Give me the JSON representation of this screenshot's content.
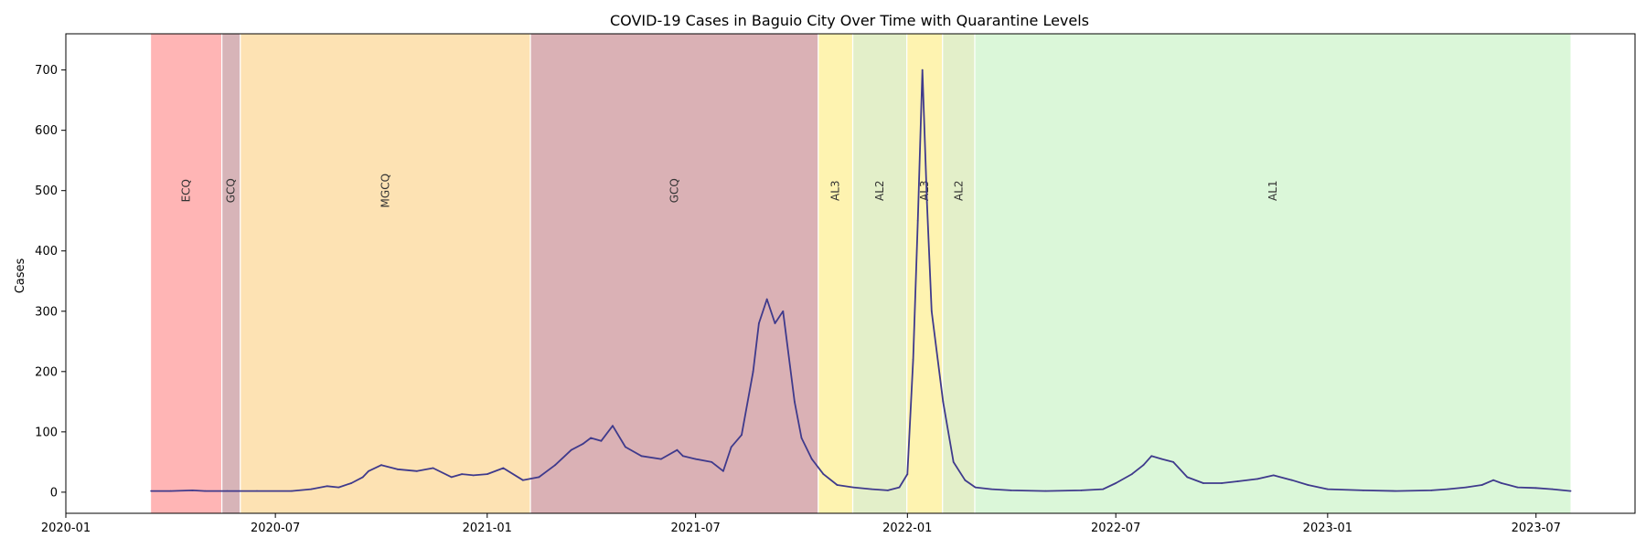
{
  "chart_data": {
    "type": "line",
    "title": "COVID-19 Cases in Baguio City Over Time with Quarantine Levels",
    "xlabel": "",
    "ylabel": "Cases",
    "xlim": [
      "2020-01-01",
      "2023-09-25"
    ],
    "ylim": [
      -35,
      760
    ],
    "x_ticks": [
      "2020-01",
      "2020-07",
      "2021-01",
      "2021-07",
      "2022-01",
      "2022-07",
      "2023-01",
      "2023-07"
    ],
    "y_ticks": [
      0,
      100,
      200,
      300,
      400,
      500,
      600,
      700
    ],
    "grid": false,
    "line_color": "#3f3a8c",
    "quarantine_levels": [
      {
        "label": "ECQ",
        "start": "2020-03-15",
        "end": "2020-05-15",
        "color": "#ff6b6b"
      },
      {
        "label": "GCQ",
        "start": "2020-05-16",
        "end": "2020-05-31",
        "color": "#b06a72"
      },
      {
        "label": "MGCQ",
        "start": "2020-06-01",
        "end": "2021-02-07",
        "color": "#fcc567"
      },
      {
        "label": "GCQ",
        "start": "2021-02-08",
        "end": "2021-10-15",
        "color": "#b5646b"
      },
      {
        "label": "AL3",
        "start": "2021-10-16",
        "end": "2021-11-14",
        "color": "#fde762"
      },
      {
        "label": "AL2",
        "start": "2021-11-15",
        "end": "2021-12-31",
        "color": "#c8df94"
      },
      {
        "label": "AL3",
        "start": "2022-01-01",
        "end": "2022-01-31",
        "color": "#fde762"
      },
      {
        "label": "AL2",
        "start": "2022-02-01",
        "end": "2022-02-28",
        "color": "#c8df94"
      },
      {
        "label": "AL1",
        "start": "2022-03-01",
        "end": "2023-07-31",
        "color": "#b8f0b4"
      }
    ],
    "series": [
      {
        "x": [
          "2020-03-15",
          "2020-04-01",
          "2020-04-20",
          "2020-05-01",
          "2020-05-20",
          "2020-06-15",
          "2020-07-15",
          "2020-08-01",
          "2020-08-15",
          "2020-08-25",
          "2020-09-05",
          "2020-09-15",
          "2020-09-20",
          "2020-10-01",
          "2020-10-15",
          "2020-11-01",
          "2020-11-15",
          "2020-12-01",
          "2020-12-10",
          "2020-12-20",
          "2021-01-01",
          "2021-01-15",
          "2021-02-01",
          "2021-02-15",
          "2021-03-01",
          "2021-03-15",
          "2021-03-25",
          "2021-04-01",
          "2021-04-10",
          "2021-04-20",
          "2021-05-01",
          "2021-05-15",
          "2021-06-01",
          "2021-06-15",
          "2021-06-20",
          "2021-07-01",
          "2021-07-15",
          "2021-07-25",
          "2021-08-01",
          "2021-08-10",
          "2021-08-20",
          "2021-08-25",
          "2021-09-01",
          "2021-09-08",
          "2021-09-15",
          "2021-09-25",
          "2021-10-01",
          "2021-10-10",
          "2021-10-20",
          "2021-11-01",
          "2021-11-15",
          "2021-12-01",
          "2021-12-15",
          "2021-12-25",
          "2022-01-01",
          "2022-01-06",
          "2022-01-10",
          "2022-01-14",
          "2022-01-18",
          "2022-01-22",
          "2022-02-01",
          "2022-02-10",
          "2022-02-20",
          "2022-03-01",
          "2022-03-15",
          "2022-04-01",
          "2022-05-01",
          "2022-06-01",
          "2022-06-20",
          "2022-07-01",
          "2022-07-15",
          "2022-07-25",
          "2022-08-01",
          "2022-08-10",
          "2022-08-20",
          "2022-09-01",
          "2022-09-15",
          "2022-10-01",
          "2022-10-15",
          "2022-11-01",
          "2022-11-15",
          "2022-12-01",
          "2022-12-15",
          "2023-01-01",
          "2023-02-01",
          "2023-03-01",
          "2023-04-01",
          "2023-04-15",
          "2023-05-01",
          "2023-05-15",
          "2023-05-25",
          "2023-06-01",
          "2023-06-15",
          "2023-07-01",
          "2023-07-15",
          "2023-07-31"
        ],
        "values": [
          2,
          2,
          3,
          2,
          2,
          2,
          2,
          5,
          10,
          8,
          15,
          25,
          35,
          45,
          38,
          35,
          40,
          25,
          30,
          28,
          30,
          40,
          20,
          25,
          45,
          70,
          80,
          90,
          85,
          110,
          75,
          60,
          55,
          70,
          60,
          55,
          50,
          35,
          75,
          95,
          200,
          280,
          320,
          280,
          300,
          150,
          90,
          55,
          30,
          12,
          8,
          5,
          3,
          8,
          30,
          220,
          450,
          700,
          480,
          300,
          150,
          50,
          20,
          8,
          5,
          3,
          2,
          3,
          5,
          15,
          30,
          45,
          60,
          55,
          50,
          25,
          15,
          15,
          18,
          22,
          28,
          20,
          12,
          5,
          3,
          2,
          3,
          5,
          8,
          12,
          20,
          15,
          8,
          7,
          5,
          2
        ]
      }
    ]
  }
}
